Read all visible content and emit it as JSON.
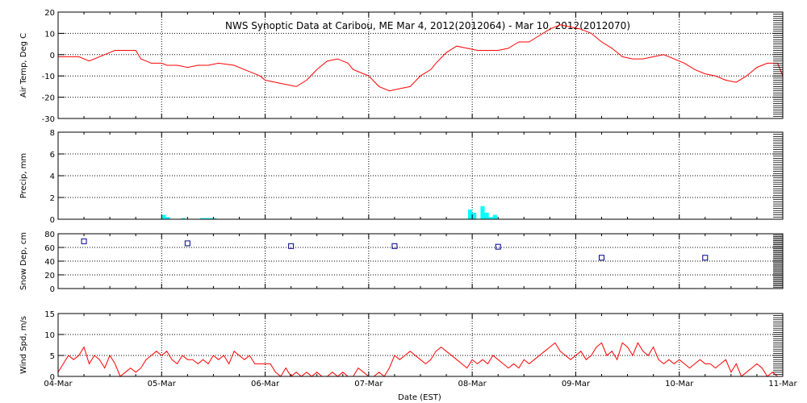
{
  "chart_data": {
    "title": "NWS Synoptic Data at Caribou, ME   Mar  4, 2012(2012064) - Mar 10, 2012(2012070)",
    "xlabel": "Date (EST)",
    "x_tick_labels": [
      "04-Mar",
      "05-Mar",
      "06-Mar",
      "07-Mar",
      "08-Mar",
      "09-Mar",
      "10-Mar",
      "11-Mar"
    ],
    "x_range_days": [
      0,
      7
    ],
    "grid": true,
    "panels": [
      {
        "id": "air_temp",
        "type": "line",
        "ylabel": "Air Temp, Deg C",
        "ylim": [
          -30,
          20
        ],
        "yticks": [
          -30,
          -20,
          -10,
          0,
          10,
          20
        ],
        "color": "#ff0000",
        "series": [
          {
            "x": [
              0.0,
              0.1,
              0.2,
              0.3,
              0.4,
              0.55,
              0.65,
              0.75,
              0.8,
              0.9,
              1.0,
              1.05,
              1.15,
              1.25,
              1.35,
              1.45,
              1.55,
              1.7,
              1.8,
              1.95,
              2.0,
              2.1,
              2.2,
              2.3,
              2.4,
              2.5,
              2.6,
              2.7,
              2.8,
              2.85,
              2.9,
              3.0,
              3.1,
              3.2,
              3.3,
              3.4,
              3.5,
              3.6,
              3.65,
              3.75,
              3.85,
              3.95,
              4.05,
              4.15,
              4.25,
              4.35,
              4.45,
              4.55,
              4.65,
              4.75,
              4.85,
              4.95,
              5.05,
              5.15,
              5.25,
              5.35,
              5.45,
              5.55,
              5.65,
              5.75,
              5.85,
              5.95,
              6.05,
              6.15,
              6.25,
              6.35,
              6.45,
              6.55,
              6.65,
              6.75,
              6.85,
              6.95,
              7.0
            ],
            "y": [
              -1,
              -1,
              -1,
              -3,
              -1,
              2,
              2,
              2,
              -2,
              -4,
              -4,
              -5,
              -5,
              -6,
              -5,
              -5,
              -4,
              -5,
              -7,
              -10,
              -12,
              -13,
              -14,
              -15,
              -12,
              -7,
              -3,
              -2,
              -4,
              -7,
              -8,
              -10,
              -15,
              -17,
              -16,
              -15,
              -10,
              -7,
              -4,
              1,
              4,
              3,
              2,
              2,
              2,
              3,
              6,
              6,
              9,
              12,
              14,
              13,
              12,
              10,
              6,
              3,
              -1,
              -2,
              -2,
              -1,
              0,
              -2,
              -4,
              -7,
              -9,
              -10,
              -12,
              -13,
              -10,
              -6,
              -4,
              -4,
              -10
            ]
          }
        ]
      },
      {
        "id": "precip",
        "type": "bar",
        "ylabel": "Precip, mm",
        "ylim": [
          0,
          8
        ],
        "yticks": [
          0,
          2,
          4,
          6,
          8
        ],
        "color": "#00ffff",
        "bar_width_days": 0.04,
        "series": [
          {
            "x": [
              1.02,
              1.06,
              1.21,
              1.39,
              1.43,
              1.47,
              1.51,
              3.98,
              4.02,
              4.1,
              4.14,
              4.18,
              4.22
            ],
            "y": [
              0.4,
              0.2,
              0.1,
              0.1,
              0.1,
              0.1,
              0.1,
              0.9,
              0.6,
              1.2,
              0.6,
              0.2,
              0.4
            ]
          }
        ]
      },
      {
        "id": "snow_depth",
        "type": "scatter",
        "ylabel": "Snow Dep, cm",
        "ylim": [
          0,
          80
        ],
        "yticks": [
          0,
          20,
          40,
          60,
          80
        ],
        "color": "#00008b",
        "marker": "square",
        "series": [
          {
            "x": [
              0.25,
              1.25,
              2.25,
              3.25,
              4.25,
              5.25,
              6.25
            ],
            "y": [
              69,
              66,
              62,
              62,
              61,
              45,
              45
            ]
          }
        ]
      },
      {
        "id": "wind_speed",
        "type": "line",
        "ylabel": "Wind Spd, m/s",
        "ylim": [
          0,
          15
        ],
        "yticks": [
          0,
          5,
          10,
          15
        ],
        "color": "#ff0000",
        "series": [
          {
            "x": [
              0.0,
              0.05,
              0.1,
              0.15,
              0.2,
              0.25,
              0.3,
              0.35,
              0.4,
              0.45,
              0.5,
              0.55,
              0.6,
              0.65,
              0.7,
              0.75,
              0.8,
              0.85,
              0.9,
              0.95,
              1.0,
              1.05,
              1.1,
              1.15,
              1.2,
              1.25,
              1.3,
              1.35,
              1.4,
              1.45,
              1.5,
              1.55,
              1.6,
              1.65,
              1.7,
              1.75,
              1.8,
              1.85,
              1.9,
              1.95,
              2.0,
              2.05,
              2.1,
              2.15,
              2.2,
              2.25,
              2.3,
              2.35,
              2.4,
              2.45,
              2.5,
              2.55,
              2.6,
              2.65,
              2.7,
              2.75,
              2.8,
              2.85,
              2.9,
              2.95,
              3.0,
              3.05,
              3.1,
              3.15,
              3.2,
              3.25,
              3.3,
              3.35,
              3.4,
              3.45,
              3.5,
              3.55,
              3.6,
              3.65,
              3.7,
              3.75,
              3.8,
              3.85,
              3.9,
              3.95,
              4.0,
              4.05,
              4.1,
              4.15,
              4.2,
              4.25,
              4.3,
              4.35,
              4.4,
              4.45,
              4.5,
              4.55,
              4.6,
              4.65,
              4.7,
              4.75,
              4.8,
              4.85,
              4.9,
              4.95,
              5.0,
              5.05,
              5.1,
              5.15,
              5.2,
              5.25,
              5.3,
              5.35,
              5.4,
              5.45,
              5.5,
              5.55,
              5.6,
              5.65,
              5.7,
              5.75,
              5.8,
              5.85,
              5.9,
              5.95,
              6.0,
              6.05,
              6.1,
              6.15,
              6.2,
              6.25,
              6.3,
              6.35,
              6.4,
              6.45,
              6.5,
              6.55,
              6.6,
              6.65,
              6.7,
              6.75,
              6.8,
              6.85,
              6.9,
              6.95,
              7.0
            ],
            "y": [
              1,
              3,
              5,
              4,
              5,
              7,
              3,
              5,
              4,
              2,
              5,
              3,
              0,
              1,
              2,
              1,
              2,
              4,
              5,
              6,
              5,
              6,
              4,
              3,
              5,
              4,
              4,
              3,
              4,
              3,
              5,
              4,
              5,
              3,
              6,
              5,
              4,
              5,
              3,
              3,
              3,
              3,
              1,
              0,
              2,
              0,
              1,
              0,
              1,
              0,
              1,
              0,
              0,
              1,
              0,
              1,
              0,
              0,
              2,
              1,
              0,
              0,
              1,
              0,
              2,
              5,
              4,
              5,
              6,
              5,
              4,
              3,
              4,
              6,
              7,
              6,
              5,
              4,
              3,
              2,
              4,
              3,
              4,
              3,
              5,
              4,
              3,
              2,
              3,
              2,
              4,
              3,
              4,
              5,
              6,
              7,
              8,
              6,
              5,
              4,
              5,
              6,
              4,
              5,
              7,
              8,
              5,
              6,
              4,
              8,
              7,
              5,
              8,
              6,
              5,
              7,
              4,
              3,
              4,
              3,
              4,
              3,
              2,
              3,
              4,
              3,
              3,
              2,
              3,
              4,
              1,
              3,
              0,
              1,
              2,
              3,
              2,
              0,
              1,
              0,
              0
            ]
          }
        ]
      }
    ]
  }
}
